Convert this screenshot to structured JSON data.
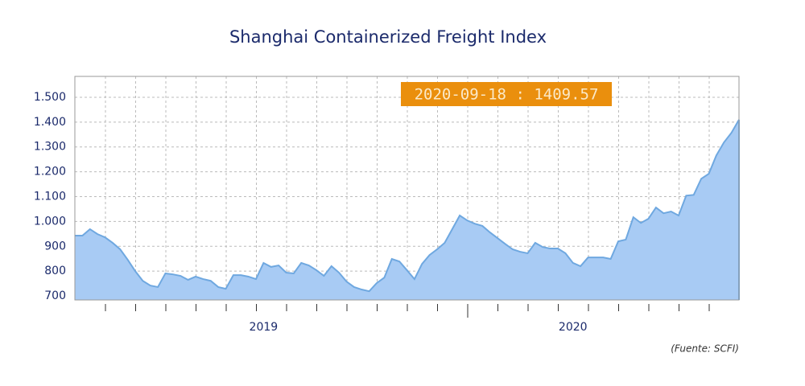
{
  "chart_data": {
    "type": "area",
    "title": "Shanghai Containerized Freight Index",
    "annotation": "2020-09-18 : 1409.57",
    "source": "(Fuente: SCFI)",
    "categories": [
      null,
      null,
      null,
      null,
      null,
      null,
      null,
      null,
      null,
      null,
      null,
      null,
      null,
      null,
      null,
      null,
      null,
      null,
      null,
      null,
      null,
      null,
      null,
      null,
      null,
      "2019",
      null,
      null,
      null,
      null,
      null,
      null,
      null,
      null,
      null,
      null,
      null,
      null,
      null,
      null,
      null,
      null,
      null,
      null,
      null,
      null,
      null,
      null,
      null,
      null,
      null,
      null,
      null,
      null,
      null,
      null,
      null,
      null,
      null,
      null,
      null,
      null,
      null,
      null,
      null,
      null,
      "2020",
      null,
      null,
      null,
      null,
      null,
      null,
      null,
      null,
      null,
      null,
      null,
      null,
      null,
      null,
      null,
      null,
      null,
      null,
      null,
      null,
      null,
      null
    ],
    "values": [
      943,
      943,
      969,
      949,
      936,
      914,
      888,
      846,
      800,
      761,
      742,
      736,
      791,
      787,
      781,
      765,
      778,
      768,
      761,
      736,
      729,
      784,
      784,
      778,
      768,
      833,
      817,
      823,
      794,
      791,
      833,
      823,
      804,
      781,
      820,
      794,
      758,
      736,
      726,
      719,
      752,
      774,
      849,
      839,
      804,
      768,
      829,
      865,
      888,
      914,
      969,
      1024,
      1004,
      991,
      982,
      956,
      933,
      910,
      888,
      878,
      872,
      914,
      897,
      891,
      891,
      872,
      833,
      820,
      855,
      855,
      855,
      849,
      920,
      927,
      1017,
      994,
      1011,
      1056,
      1033,
      1040,
      1024,
      1104,
      1107,
      1172,
      1192,
      1266,
      1318,
      1357,
      1409.57
    ],
    "color": "#6fa8e0",
    "fill_color": "#a8cbf4",
    "ylim": [
      684,
      1584
    ],
    "yticks": [
      700,
      800,
      900,
      {
        "value": 1000,
        "label": "1.000"
      },
      {
        "value": 1100,
        "label": "1.100"
      },
      {
        "value": 1200,
        "label": "1.200"
      },
      {
        "value": 1300,
        "label": "1.300"
      },
      {
        "value": 1400,
        "label": "1.400"
      },
      {
        "value": 1500,
        "label": "1.500"
      }
    ],
    "grid": true
  }
}
